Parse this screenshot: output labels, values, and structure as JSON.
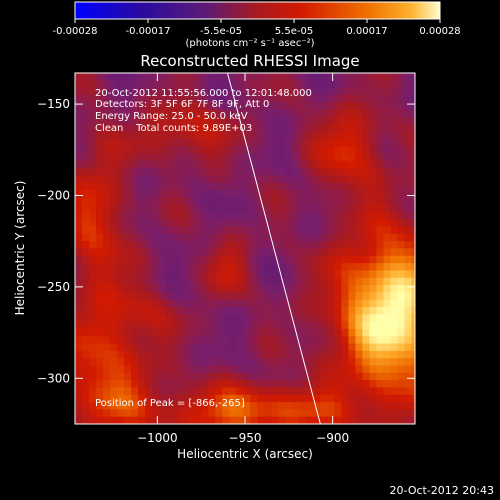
{
  "colors": {
    "background": "#000000",
    "foreground": "#ffffff",
    "colormap": [
      "#0000ff",
      "#2a0aa0",
      "#3c1480",
      "#5a1a7a",
      "#7a1e6a",
      "#a81a20",
      "#d21a00",
      "#f07000",
      "#ffb030",
      "#ffffaa"
    ]
  },
  "colorbar": {
    "tick_labels": [
      "-0.00028",
      "-0.00017",
      "-5.5e-05",
      "5.5e-05",
      "0.00017",
      "0.00028"
    ],
    "units_label": "(photons cm⁻² s⁻¹ asec⁻²)",
    "range": [
      -0.00028,
      0.00028
    ]
  },
  "image_info": {
    "time_range": "20-Oct-2012 11:55:56.000 to 12:01:48.000",
    "detectors": "Detectors: 3F 5F 6F 7F 8F 9F, Att 0",
    "energy_range": "Energy Range: 25.0 - 50.0 keV",
    "clean_line": "Clean    Total counts: 9.89E+03",
    "peak_position": "Position of Peak = [-866,-265]"
  },
  "footer_timestamp": "20-Oct-2012 20:43",
  "chart_data": {
    "type": "heatmap",
    "title": "Reconstructed RHESSI Image",
    "xlabel": "Heliocentric X (arcsec)",
    "ylabel": "Heliocentric Y (arcsec)",
    "xlim": [
      -1047,
      -853
    ],
    "ylim": [
      -325,
      -133
    ],
    "x_ticks": [
      -1000,
      -950,
      -900
    ],
    "x_tick_labels": [
      "−1000",
      "−950",
      "−900"
    ],
    "y_ticks": [
      -150,
      -200,
      -250,
      -300
    ],
    "y_tick_labels": [
      "−150",
      "−200",
      "−250",
      "−300"
    ],
    "grid": false,
    "limb_line": [
      [
        -960,
        -133
      ],
      [
        -907,
        -325
      ]
    ],
    "peak": {
      "x": -866,
      "y": -265,
      "value": 0.00028
    },
    "sources": [
      {
        "x": -866,
        "y": -265,
        "sx": 22,
        "sy": 30,
        "amp": 0.00031
      },
      {
        "x": -890,
        "y": -175,
        "sx": 14,
        "sy": 16,
        "amp": 0.00012
      },
      {
        "x": -945,
        "y": -318,
        "sx": 40,
        "sy": 10,
        "amp": 0.00016
      },
      {
        "x": -1030,
        "y": -300,
        "sx": 18,
        "sy": 26,
        "amp": 0.00014
      },
      {
        "x": -1035,
        "y": -215,
        "sx": 12,
        "sy": 30,
        "amp": 0.00012
      },
      {
        "x": -985,
        "y": -165,
        "sx": 18,
        "sy": 10,
        "amp": 0.0001
      },
      {
        "x": -960,
        "y": -240,
        "sx": 8,
        "sy": 12,
        "amp": 8e-05
      },
      {
        "x": -1010,
        "y": -265,
        "sx": 14,
        "sy": 10,
        "amp": 6e-05
      }
    ]
  }
}
